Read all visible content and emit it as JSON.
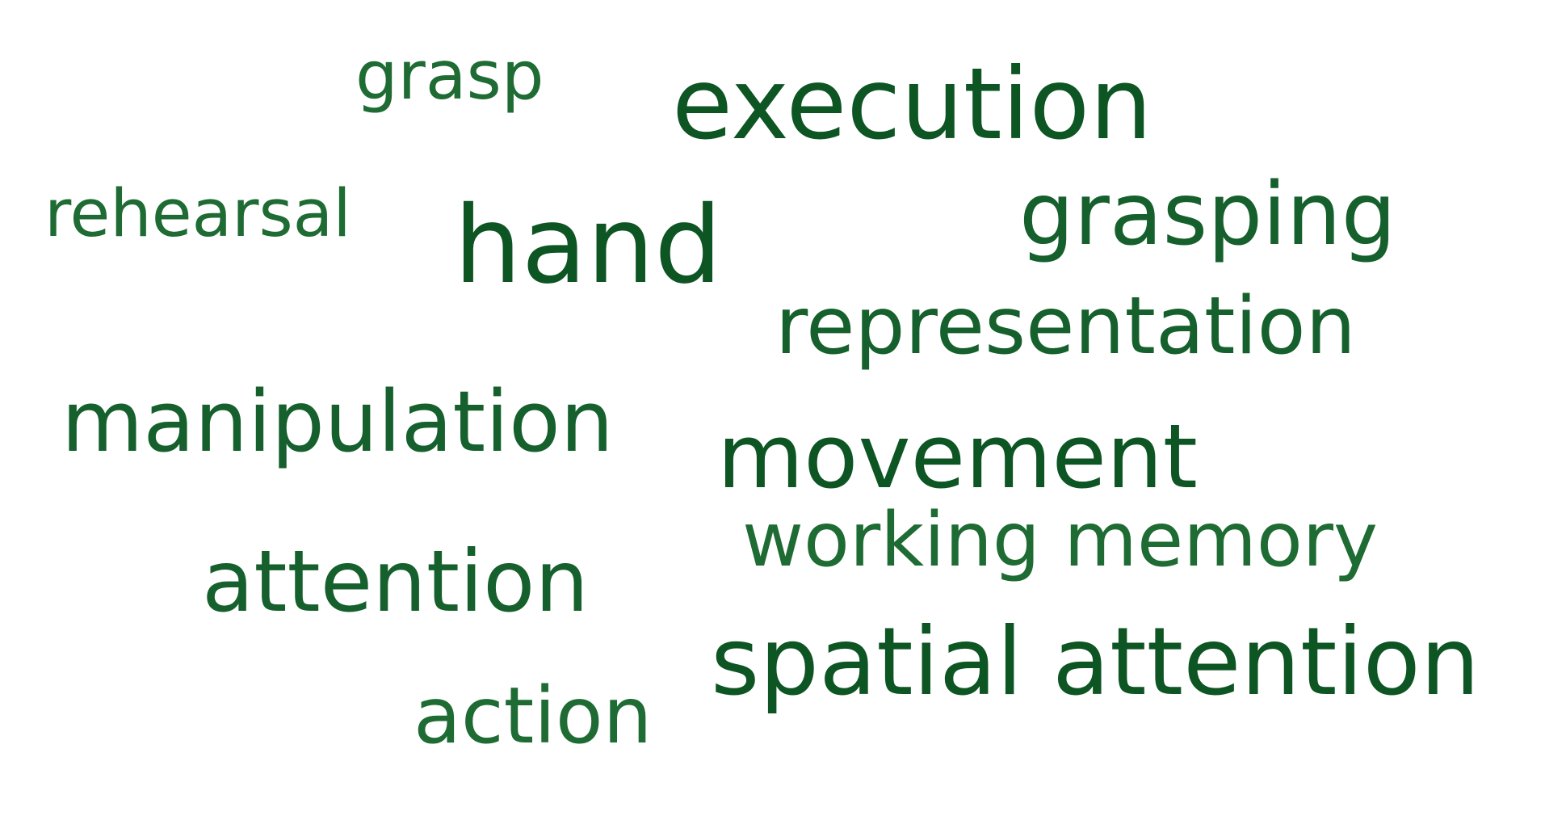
{
  "word_cloud": {
    "text_color": "#15602c",
    "words": {
      "grasp": "grasp",
      "execution": "execution",
      "rehearsal": "rehearsal",
      "hand": "hand",
      "grasping": "grasping",
      "representation": "representation",
      "manipulation": "manipulation",
      "movement": "movement",
      "working_memory": "working memory",
      "attention": "attention",
      "spatial_attention": "spatial attention",
      "action": "action"
    }
  }
}
